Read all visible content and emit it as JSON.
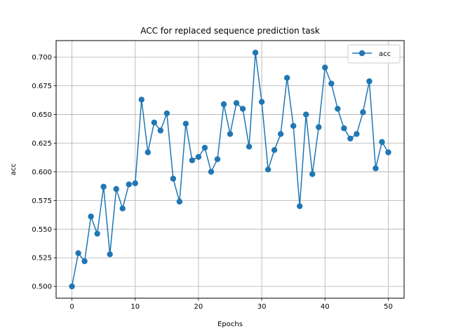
{
  "chart_data": {
    "type": "line",
    "title": "ACC for replaced sequence prediction task",
    "xlabel": "Epochs",
    "ylabel": "acc",
    "xlim": [
      -2.5,
      52.5
    ],
    "ylim": [
      0.4897,
      0.7145
    ],
    "xticks": [
      0,
      10,
      20,
      30,
      40,
      50
    ],
    "yticks": [
      0.5,
      0.525,
      0.55,
      0.575,
      0.6,
      0.625,
      0.65,
      0.675,
      0.7
    ],
    "grid": true,
    "legend_position": "top-right",
    "series": [
      {
        "name": "acc",
        "color": "#1f77b4",
        "marker": "circle",
        "x": [
          0,
          1,
          2,
          3,
          4,
          5,
          6,
          7,
          8,
          9,
          10,
          11,
          12,
          13,
          14,
          15,
          16,
          17,
          18,
          19,
          20,
          21,
          22,
          23,
          24,
          25,
          26,
          27,
          28,
          29,
          30,
          31,
          32,
          33,
          34,
          35,
          36,
          37,
          38,
          39,
          40,
          41,
          42,
          43,
          44,
          45,
          46,
          47,
          48,
          49,
          50
        ],
        "values": [
          0.5,
          0.529,
          0.522,
          0.561,
          0.546,
          0.587,
          0.528,
          0.585,
          0.568,
          0.589,
          0.59,
          0.663,
          0.617,
          0.643,
          0.636,
          0.651,
          0.594,
          0.574,
          0.642,
          0.61,
          0.613,
          0.621,
          0.6,
          0.611,
          0.659,
          0.633,
          0.66,
          0.655,
          0.622,
          0.704,
          0.661,
          0.602,
          0.619,
          0.633,
          0.682,
          0.64,
          0.57,
          0.65,
          0.598,
          0.639,
          0.691,
          0.677,
          0.655,
          0.638,
          0.629,
          0.633,
          0.652,
          0.679,
          0.603,
          0.626,
          0.617
        ]
      }
    ]
  }
}
